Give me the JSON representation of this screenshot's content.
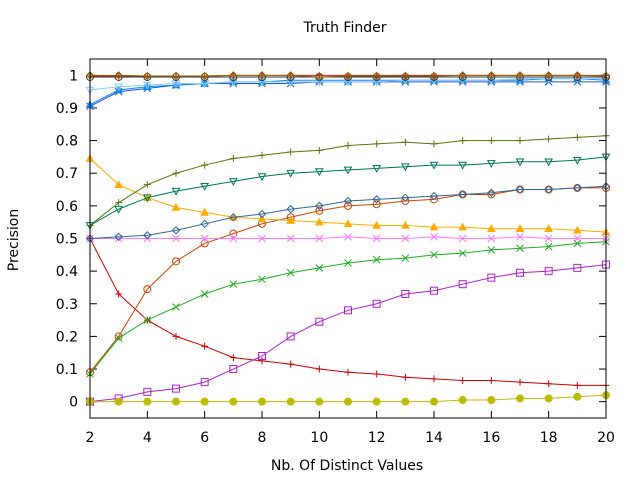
{
  "chart_data": {
    "type": "line",
    "title": "Truth Finder",
    "xlabel": "Nb. Of Distinct Values",
    "ylabel": "Precision",
    "xlim": [
      2,
      20
    ],
    "ylim": [
      -0.05,
      1.05
    ],
    "xticks": [
      "2",
      "4",
      "6",
      "8",
      "10",
      "12",
      "14",
      "16",
      "18",
      "20"
    ],
    "yticks": [
      "0",
      "0.1",
      "0.2",
      "0.3",
      "0.4",
      "0.5",
      "0.6",
      "0.7",
      "0.8",
      "0.9",
      "1"
    ],
    "grid": false,
    "legend": "none",
    "x": [
      2,
      3,
      4,
      5,
      6,
      7,
      8,
      9,
      10,
      11,
      12,
      13,
      14,
      15,
      16,
      17,
      18,
      19,
      20
    ],
    "series": [
      {
        "color": "#cc0000",
        "marker": "plus",
        "values": [
          0.5,
          0.33,
          0.25,
          0.2,
          0.17,
          0.135,
          0.125,
          0.115,
          0.1,
          0.09,
          0.085,
          0.075,
          0.07,
          0.065,
          0.065,
          0.06,
          0.055,
          0.05,
          0.05
        ]
      },
      {
        "color": "#cc4400",
        "marker": "circle",
        "values": [
          0.09,
          0.2,
          0.345,
          0.43,
          0.485,
          0.515,
          0.545,
          0.565,
          0.585,
          0.6,
          0.605,
          0.615,
          0.62,
          0.635,
          0.635,
          0.65,
          0.65,
          0.655,
          0.655
        ]
      },
      {
        "color": "#22aa22",
        "marker": "x",
        "values": [
          0.085,
          0.195,
          0.25,
          0.29,
          0.33,
          0.36,
          0.375,
          0.395,
          0.41,
          0.425,
          0.435,
          0.44,
          0.45,
          0.455,
          0.465,
          0.47,
          0.475,
          0.485,
          0.49
        ]
      },
      {
        "color": "#aa22cc",
        "marker": "square",
        "values": [
          0.0,
          0.01,
          0.03,
          0.04,
          0.06,
          0.1,
          0.14,
          0.2,
          0.245,
          0.28,
          0.3,
          0.33,
          0.34,
          0.36,
          0.38,
          0.395,
          0.4,
          0.41,
          0.42
        ]
      },
      {
        "color": "#bbbb00",
        "marker": "filled-circle",
        "values": [
          0.0,
          0.0,
          0.0,
          0.0,
          0.0,
          0.0,
          0.0,
          0.0,
          0.0,
          0.0,
          0.0,
          0.0,
          0.0,
          0.005,
          0.005,
          0.01,
          0.01,
          0.015,
          0.02
        ]
      },
      {
        "color": "#ffaa00",
        "marker": "filled-triangle",
        "values": [
          0.745,
          0.665,
          0.625,
          0.595,
          0.58,
          0.565,
          0.56,
          0.555,
          0.55,
          0.545,
          0.54,
          0.54,
          0.535,
          0.535,
          0.53,
          0.53,
          0.53,
          0.525,
          0.52
        ]
      },
      {
        "color": "#ff77ff",
        "marker": "x",
        "values": [
          0.5,
          0.5,
          0.5,
          0.5,
          0.5,
          0.5,
          0.5,
          0.5,
          0.5,
          0.505,
          0.5,
          0.5,
          0.505,
          0.5,
          0.5,
          0.505,
          0.5,
          0.5,
          0.5
        ]
      },
      {
        "color": "#336699",
        "marker": "diamond",
        "values": [
          0.5,
          0.505,
          0.51,
          0.525,
          0.545,
          0.565,
          0.575,
          0.59,
          0.6,
          0.615,
          0.62,
          0.625,
          0.63,
          0.635,
          0.64,
          0.65,
          0.65,
          0.655,
          0.66
        ]
      },
      {
        "color": "#007755",
        "marker": "triangle-down",
        "values": [
          0.54,
          0.59,
          0.625,
          0.645,
          0.66,
          0.675,
          0.69,
          0.7,
          0.705,
          0.71,
          0.715,
          0.72,
          0.725,
          0.725,
          0.73,
          0.735,
          0.735,
          0.74,
          0.75
        ]
      },
      {
        "color": "#557711",
        "marker": "plus",
        "values": [
          0.54,
          0.61,
          0.665,
          0.7,
          0.725,
          0.745,
          0.755,
          0.765,
          0.77,
          0.785,
          0.79,
          0.795,
          0.79,
          0.8,
          0.8,
          0.8,
          0.805,
          0.81,
          0.815
        ]
      },
      {
        "color": "#2255cc",
        "marker": "x",
        "values": [
          0.905,
          0.95,
          0.96,
          0.97,
          0.975,
          0.975,
          0.975,
          0.975,
          0.98,
          0.98,
          0.98,
          0.98,
          0.98,
          0.98,
          0.98,
          0.98,
          0.98,
          0.98,
          0.98
        ]
      },
      {
        "color": "#1188ee",
        "marker": "filled-triangle",
        "values": [
          0.91,
          0.955,
          0.965,
          0.97,
          0.975,
          0.98,
          0.98,
          0.985,
          0.985,
          0.985,
          0.985,
          0.985,
          0.985,
          0.985,
          0.985,
          0.985,
          0.99,
          0.99,
          0.985
        ]
      },
      {
        "color": "#88ccff",
        "marker": "triangle-down",
        "values": [
          0.955,
          0.965,
          0.97,
          0.975,
          0.975,
          0.98,
          0.98,
          0.98,
          0.98,
          0.98,
          0.98,
          0.985,
          0.985,
          0.985,
          0.985,
          0.99,
          0.99,
          0.99,
          0.99
        ]
      },
      {
        "color": "#333333",
        "marker": "circle",
        "values": [
          0.995,
          0.995,
          0.995,
          0.995,
          0.995,
          0.995,
          0.995,
          0.995,
          0.995,
          0.995,
          0.995,
          0.995,
          0.995,
          0.995,
          0.995,
          0.995,
          0.995,
          0.995,
          0.995
        ]
      },
      {
        "color": "#cc2222",
        "marker": "plus",
        "values": [
          0.998,
          0.998,
          0.998,
          0.998,
          0.998,
          1.0,
          1.0,
          1.0,
          1.0,
          1.0,
          1.0,
          1.0,
          1.0,
          1.0,
          1.0,
          1.0,
          1.0,
          1.0,
          1.0
        ]
      },
      {
        "color": "#996600",
        "marker": "diamond",
        "values": [
          1.0,
          1.0,
          0.998,
          0.998,
          0.998,
          1.0,
          1.0,
          1.0,
          0.995,
          0.998,
          0.998,
          0.998,
          0.998,
          1.0,
          1.0,
          1.0,
          1.0,
          1.0,
          0.998
        ]
      }
    ]
  }
}
